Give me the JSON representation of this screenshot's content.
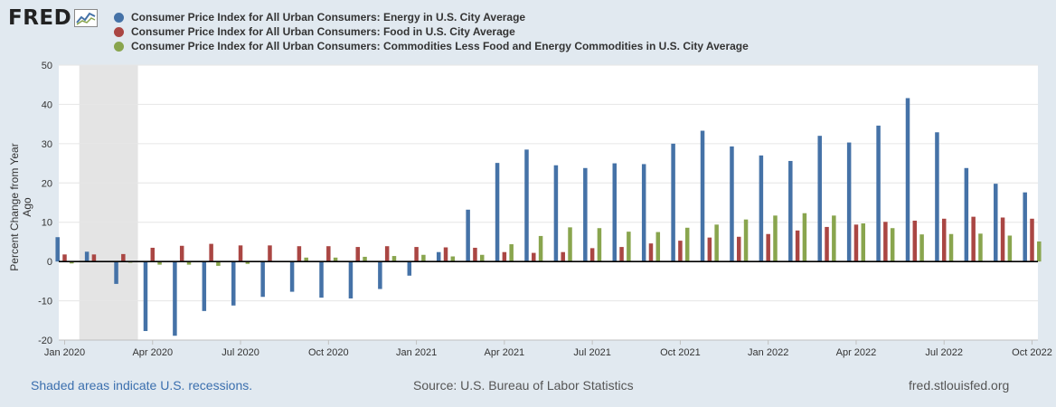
{
  "logo": {
    "text": "FRED",
    "icon": "line-graph-icon"
  },
  "legend": [
    {
      "label": "Consumer Price Index for All Urban Consumers: Energy in U.S. City Average",
      "color": "#4572a7"
    },
    {
      "label": "Consumer Price Index for All Urban Consumers: Food in U.S. City Average",
      "color": "#aa4643"
    },
    {
      "label": "Consumer Price Index for All Urban Consumers: Commodities Less Food and Energy Commodities in U.S. City Average",
      "color": "#89a54e"
    }
  ],
  "footer": {
    "recession_note": "Shaded areas indicate U.S. recessions.",
    "source": "Source: U.S. Bureau of Labor Statistics",
    "site": "fred.stlouisfed.org"
  },
  "chart_data": {
    "type": "bar",
    "ylabel": "Percent Change from Year Ago",
    "ylim": [
      -20,
      50
    ],
    "yticks": [
      -20,
      -10,
      0,
      10,
      20,
      30,
      40,
      50
    ],
    "grid": true,
    "legend_position": "top-left",
    "xtick_labels": [
      {
        "index": 0,
        "label": "Jan 2020"
      },
      {
        "index": 3,
        "label": "Apr 2020"
      },
      {
        "index": 6,
        "label": "Jul 2020"
      },
      {
        "index": 9,
        "label": "Oct 2020"
      },
      {
        "index": 12,
        "label": "Jan 2021"
      },
      {
        "index": 15,
        "label": "Apr 2021"
      },
      {
        "index": 18,
        "label": "Jul 2021"
      },
      {
        "index": 21,
        "label": "Oct 2021"
      },
      {
        "index": 24,
        "label": "Jan 2022"
      },
      {
        "index": 27,
        "label": "Apr 2022"
      },
      {
        "index": 30,
        "label": "Jul 2022"
      },
      {
        "index": 33,
        "label": "Oct 2022"
      }
    ],
    "categories": [
      "2020-01",
      "2020-02",
      "2020-03",
      "2020-04",
      "2020-05",
      "2020-06",
      "2020-07",
      "2020-08",
      "2020-09",
      "2020-10",
      "2020-11",
      "2020-12",
      "2021-01",
      "2021-02",
      "2021-03",
      "2021-04",
      "2021-05",
      "2021-06",
      "2021-07",
      "2021-08",
      "2021-09",
      "2021-10",
      "2021-11",
      "2021-12",
      "2022-01",
      "2022-02",
      "2022-03",
      "2022-04",
      "2022-05",
      "2022-06",
      "2022-07",
      "2022-08",
      "2022-09",
      "2022-10"
    ],
    "recession": {
      "start": "2020-02",
      "end": "2020-04"
    },
    "series": [
      {
        "name": "Consumer Price Index for All Urban Consumers: Energy in U.S. City Average",
        "color": "#4572a7",
        "values": [
          6.2,
          2.5,
          -5.7,
          -17.7,
          -18.9,
          -12.6,
          -11.2,
          -9.0,
          -7.7,
          -9.2,
          -9.4,
          -7.0,
          -3.6,
          2.4,
          13.2,
          25.1,
          28.5,
          24.5,
          23.8,
          25.0,
          24.8,
          30.0,
          33.3,
          29.3,
          27.0,
          25.6,
          32.0,
          30.3,
          34.6,
          41.6,
          32.9,
          23.8,
          19.8,
          17.6
        ]
      },
      {
        "name": "Consumer Price Index for All Urban Consumers: Food in U.S. City Average",
        "color": "#aa4643",
        "values": [
          1.8,
          1.8,
          1.9,
          3.5,
          4.0,
          4.5,
          4.1,
          4.1,
          3.9,
          3.9,
          3.7,
          3.9,
          3.7,
          3.6,
          3.5,
          2.4,
          2.2,
          2.4,
          3.4,
          3.7,
          4.6,
          5.3,
          6.1,
          6.3,
          7.0,
          7.9,
          8.8,
          9.4,
          10.1,
          10.4,
          10.9,
          11.4,
          11.2,
          10.9
        ]
      },
      {
        "name": "Consumer Price Index for All Urban Consumers: Commodities Less Food and Energy Commodities in U.S. City Average",
        "color": "#89a54e",
        "values": [
          -0.5,
          -0.2,
          -0.3,
          -0.8,
          -0.8,
          -1.1,
          -0.6,
          0.1,
          1.0,
          1.0,
          1.2,
          1.4,
          1.7,
          1.3,
          1.7,
          4.4,
          6.5,
          8.7,
          8.5,
          7.6,
          7.5,
          8.6,
          9.4,
          10.7,
          11.7,
          12.3,
          11.7,
          9.7,
          8.5,
          6.9,
          7.0,
          7.1,
          6.6,
          5.1
        ]
      }
    ]
  }
}
